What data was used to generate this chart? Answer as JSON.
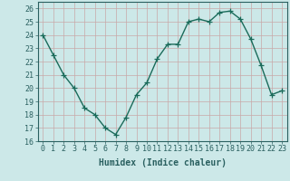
{
  "x": [
    0,
    1,
    2,
    3,
    4,
    5,
    6,
    7,
    8,
    9,
    10,
    11,
    12,
    13,
    14,
    15,
    16,
    17,
    18,
    19,
    20,
    21,
    22,
    23
  ],
  "y": [
    24.0,
    22.5,
    21.0,
    20.0,
    18.5,
    18.0,
    17.0,
    16.5,
    17.8,
    19.5,
    20.4,
    22.2,
    23.3,
    23.3,
    25.0,
    25.2,
    25.0,
    25.7,
    25.8,
    25.2,
    23.7,
    21.7,
    19.5,
    19.8
  ],
  "line_color": "#1a6b5a",
  "marker": "+",
  "marker_size": 4,
  "marker_edge_width": 0.9,
  "bg_color": "#cce8e8",
  "grid_color": "#b8d8d8",
  "xlabel": "Humidex (Indice chaleur)",
  "ylim": [
    16,
    26.5
  ],
  "yticks": [
    16,
    17,
    18,
    19,
    20,
    21,
    22,
    23,
    24,
    25,
    26
  ],
  "xticks": [
    0,
    1,
    2,
    3,
    4,
    5,
    6,
    7,
    8,
    9,
    10,
    11,
    12,
    13,
    14,
    15,
    16,
    17,
    18,
    19,
    20,
    21,
    22,
    23
  ],
  "tick_fontsize": 6,
  "xlabel_fontsize": 7,
  "tick_color": "#2a6060",
  "line_width": 1.0,
  "spine_color": "#2a6060"
}
